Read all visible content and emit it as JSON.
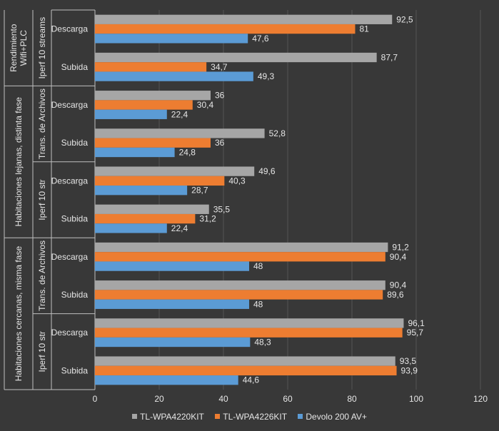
{
  "chart_data": {
    "type": "bar",
    "orientation": "horizontal",
    "xlim": [
      0,
      120
    ],
    "x_ticks": [
      "0",
      "20",
      "40",
      "60",
      "80",
      "100",
      "120"
    ],
    "grid": "vertical",
    "legend_position": "bottom",
    "series": [
      {
        "name": "TL-WPA4220KIT",
        "color": "#a6a6a6"
      },
      {
        "name": "TL-WPA4226KIT",
        "color": "#ed7d31"
      },
      {
        "name": "Devolo 200 AV+",
        "color": "#5b9bd5"
      }
    ],
    "groups": [
      {
        "label_lines": [
          "Rendimiento",
          "Wifi+PLC"
        ],
        "subgroups": [
          {
            "label": "Iperf 10 streams",
            "categories": [
              {
                "label": "Descarga",
                "values": [
                  92.5,
                  81,
                  47.6
                ],
                "value_labels": [
                  "92,5",
                  "81",
                  "47,6"
                ]
              },
              {
                "label": "Subida",
                "values": [
                  87.7,
                  34.7,
                  49.3
                ],
                "value_labels": [
                  "87,7",
                  "34,7",
                  "49,3"
                ]
              }
            ]
          }
        ]
      },
      {
        "label_lines": [
          "Habitaciones lejanas, distinta fase"
        ],
        "subgroups": [
          {
            "label": "Trans. de Archivos",
            "categories": [
              {
                "label": "Descarga",
                "values": [
                  36,
                  30.4,
                  22.4
                ],
                "value_labels": [
                  "36",
                  "30,4",
                  "22,4"
                ]
              },
              {
                "label": "Subida",
                "values": [
                  52.8,
                  36,
                  24.8
                ],
                "value_labels": [
                  "52,8",
                  "36",
                  "24,8"
                ]
              }
            ]
          },
          {
            "label": "Iperf 10 str",
            "categories": [
              {
                "label": "Descarga",
                "values": [
                  49.6,
                  40.3,
                  28.7
                ],
                "value_labels": [
                  "49,6",
                  "40,3",
                  "28,7"
                ]
              },
              {
                "label": "Subida",
                "values": [
                  35.5,
                  31.2,
                  22.4
                ],
                "value_labels": [
                  "35,5",
                  "31,2",
                  "22,4"
                ]
              }
            ]
          }
        ]
      },
      {
        "label_lines": [
          "Habitaciones cercanas, misma fase"
        ],
        "subgroups": [
          {
            "label": "Trans. de Archivos",
            "categories": [
              {
                "label": "Descarga",
                "values": [
                  91.2,
                  90.4,
                  48
                ],
                "value_labels": [
                  "91,2",
                  "90,4",
                  "48"
                ]
              },
              {
                "label": "Subida",
                "values": [
                  90.4,
                  89.6,
                  48
                ],
                "value_labels": [
                  "90,4",
                  "89,6",
                  "48"
                ]
              }
            ]
          },
          {
            "label": "Iperf 10 str",
            "categories": [
              {
                "label": "Descarga",
                "values": [
                  96.1,
                  95.7,
                  48.3
                ],
                "value_labels": [
                  "96,1",
                  "95,7",
                  "48,3"
                ]
              },
              {
                "label": "Subida",
                "values": [
                  93.5,
                  93.9,
                  44.6
                ],
                "value_labels": [
                  "93,5",
                  "93,9",
                  "44,6"
                ]
              }
            ]
          }
        ]
      }
    ]
  }
}
